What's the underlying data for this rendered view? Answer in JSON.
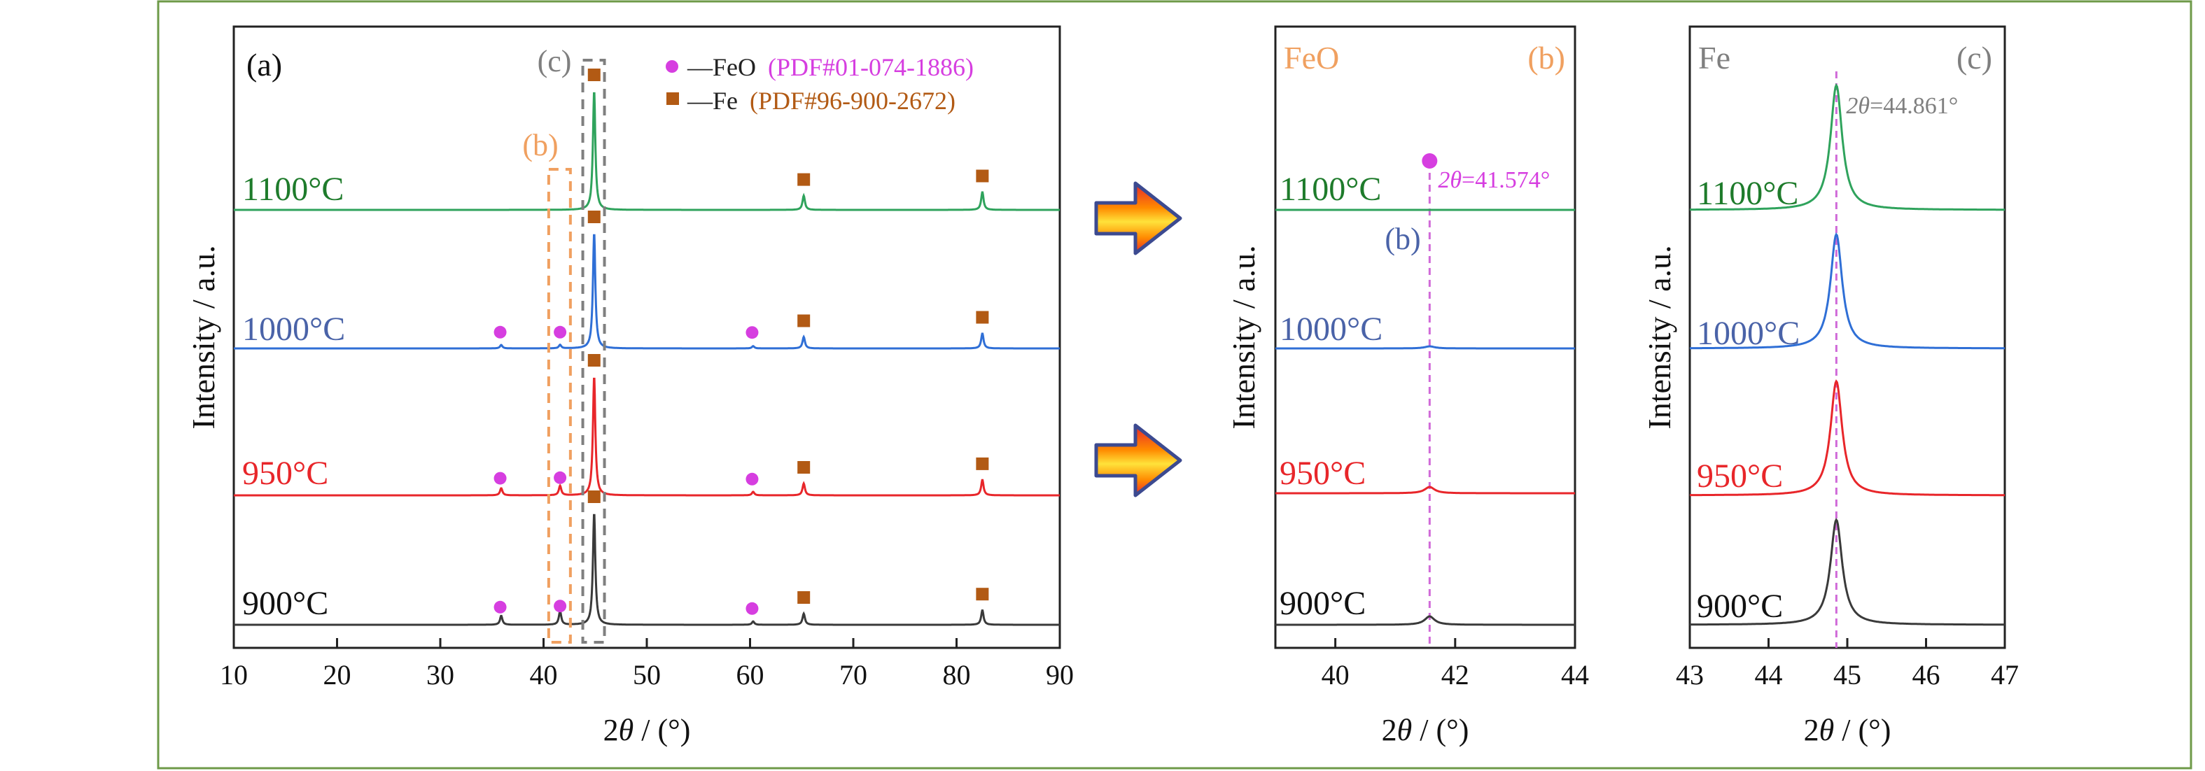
{
  "colors": {
    "900": "#3a3a3a",
    "950": "#e8262a",
    "1000": "#2f6fd6",
    "1100": "#2fa35c",
    "green_label": "#1e7b2b",
    "blue_label": "#4a63a8",
    "feo": "#d63ee0",
    "fe": "#b25a14",
    "b_box": "#f0a060",
    "c_box": "#7f7f7f",
    "frame": "#6e9a48",
    "ref_line": "#d06ad8"
  },
  "chart_data": [
    {
      "id": "a",
      "type": "line",
      "panel_label": "(a)",
      "xlabel_pre": "2",
      "xlabel_theta": "θ",
      "xlabel_post": " / (°)",
      "ylabel": "Intensity / a.u.",
      "xlim": [
        10,
        90
      ],
      "xticks": [
        10,
        20,
        30,
        40,
        50,
        60,
        70,
        80,
        90
      ],
      "series": [
        {
          "name": "900°C",
          "color_key": "900"
        },
        {
          "name": "950°C",
          "color_key": "950"
        },
        {
          "name": "1000°C",
          "color_key": "1000"
        },
        {
          "name": "1100°C",
          "color_key": "1100"
        }
      ],
      "peaks": {
        "900": [
          [
            35.9,
            0.08
          ],
          [
            41.6,
            0.12
          ],
          [
            44.9,
            1.0
          ],
          [
            60.3,
            0.03
          ],
          [
            65.2,
            0.1
          ],
          [
            82.5,
            0.13
          ]
        ],
        "950": [
          [
            35.9,
            0.06
          ],
          [
            41.6,
            0.08
          ],
          [
            44.9,
            1.0
          ],
          [
            60.3,
            0.03
          ],
          [
            65.2,
            0.1
          ],
          [
            82.5,
            0.13
          ]
        ],
        "1000": [
          [
            35.9,
            0.03
          ],
          [
            41.6,
            0.03
          ],
          [
            44.9,
            1.0
          ],
          [
            60.3,
            0.02
          ],
          [
            65.2,
            0.1
          ],
          [
            82.5,
            0.13
          ]
        ],
        "1100": [
          [
            44.9,
            1.0
          ],
          [
            65.2,
            0.12
          ],
          [
            82.5,
            0.15
          ]
        ]
      },
      "feo_markers": [
        35.8,
        41.6,
        60.2
      ],
      "fe_markers": [
        44.9,
        65.2,
        82.5
      ],
      "legend": {
        "feo_label": "—FeO",
        "feo_pdf": "(PDF#01-074-1886)",
        "fe_label": "—Fe",
        "fe_pdf": "(PDF#96-900-2672)"
      },
      "zoom_boxes": [
        {
          "label": "(b)",
          "range": [
            40.5,
            42.6
          ]
        },
        {
          "label": "(c)",
          "range": [
            43.8,
            45.9
          ]
        }
      ]
    },
    {
      "id": "b",
      "type": "line",
      "corner_label": "FeO",
      "panel_label": "(b)",
      "xlabel_pre": "2",
      "xlabel_theta": "θ",
      "xlabel_post": " / (°)",
      "ylabel": "Intensity / a.u.",
      "xlim": [
        39,
        44
      ],
      "xticks": [
        40,
        42,
        44
      ],
      "peak_position": 41.574,
      "peaks": {
        "900": [
          [
            41.574,
            0.08
          ]
        ],
        "950": [
          [
            41.574,
            0.06
          ]
        ],
        "1000": [
          [
            41.574,
            0.02
          ]
        ],
        "1100": [
          [
            41.574,
            0.0
          ]
        ]
      },
      "annotation_theta": "2θ",
      "annotation_value": "=41.574°",
      "inner_label": "(b)"
    },
    {
      "id": "c",
      "type": "line",
      "corner_label": "Fe",
      "panel_label": "(c)",
      "xlabel_pre": "2",
      "xlabel_theta": "θ",
      "xlabel_post": " / (°)",
      "ylabel": "Intensity / a.u.",
      "xlim": [
        43,
        47
      ],
      "xticks": [
        43,
        44,
        45,
        46,
        47
      ],
      "peak_position": 44.861,
      "peaks": {
        "900": [
          [
            44.861,
            1.0
          ]
        ],
        "950": [
          [
            44.861,
            1.0
          ]
        ],
        "1000": [
          [
            44.861,
            1.0
          ]
        ],
        "1100": [
          [
            44.861,
            1.0
          ]
        ]
      },
      "annotation_theta": "2θ",
      "annotation_value": "=44.861°"
    }
  ]
}
